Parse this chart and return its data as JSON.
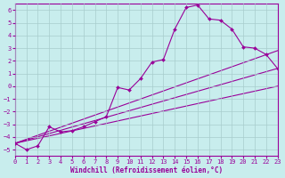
{
  "xlabel": "Windchill (Refroidissement éolien,°C)",
  "background_color": "#c8eded",
  "line_color": "#990099",
  "grid_color": "#a8cccc",
  "xlim": [
    0,
    23
  ],
  "ylim": [
    -5.5,
    6.5
  ],
  "xticks": [
    0,
    1,
    2,
    3,
    4,
    5,
    6,
    7,
    8,
    9,
    10,
    11,
    12,
    13,
    14,
    15,
    16,
    17,
    18,
    19,
    20,
    21,
    22,
    23
  ],
  "yticks": [
    -5,
    -4,
    -3,
    -2,
    -1,
    0,
    1,
    2,
    3,
    4,
    5,
    6
  ],
  "data_x": [
    0,
    1,
    2,
    3,
    4,
    5,
    6,
    7,
    8,
    9,
    10,
    11,
    12,
    13,
    14,
    15,
    16,
    17,
    18,
    19,
    20,
    21,
    22,
    23
  ],
  "data_y": [
    -4.5,
    -5.0,
    -4.7,
    -3.2,
    -3.6,
    -3.5,
    -3.2,
    -2.8,
    -2.4,
    -0.1,
    -0.3,
    0.6,
    1.9,
    2.1,
    4.5,
    6.2,
    6.4,
    5.3,
    5.2,
    4.5,
    3.1,
    3.0,
    2.5,
    1.4
  ],
  "line1_x": [
    0,
    23
  ],
  "line1_y": [
    -4.5,
    1.4
  ],
  "line2_x": [
    0,
    23
  ],
  "line2_y": [
    -4.5,
    2.8
  ],
  "line3_x": [
    0,
    23
  ],
  "line3_y": [
    -4.5,
    0.0
  ]
}
